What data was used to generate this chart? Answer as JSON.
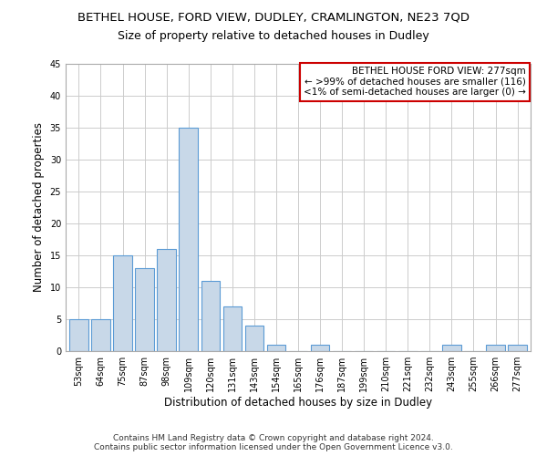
{
  "title": "BETHEL HOUSE, FORD VIEW, DUDLEY, CRAMLINGTON, NE23 7QD",
  "subtitle": "Size of property relative to detached houses in Dudley",
  "xlabel": "Distribution of detached houses by size in Dudley",
  "ylabel": "Number of detached properties",
  "categories": [
    "53sqm",
    "64sqm",
    "75sqm",
    "87sqm",
    "98sqm",
    "109sqm",
    "120sqm",
    "131sqm",
    "143sqm",
    "154sqm",
    "165sqm",
    "176sqm",
    "187sqm",
    "199sqm",
    "210sqm",
    "221sqm",
    "232sqm",
    "243sqm",
    "255sqm",
    "266sqm",
    "277sqm"
  ],
  "values": [
    5,
    5,
    15,
    13,
    16,
    35,
    11,
    7,
    4,
    1,
    0,
    1,
    0,
    0,
    0,
    0,
    0,
    1,
    0,
    1,
    1
  ],
  "bar_color": "#c8d8e8",
  "bar_edge_color": "#5b9bd5",
  "annotation_title": "BETHEL HOUSE FORD VIEW: 277sqm",
  "annotation_line1": "← >99% of detached houses are smaller (116)",
  "annotation_line2": "<1% of semi-detached houses are larger (0) →",
  "annotation_box_color": "#ffffff",
  "annotation_box_edge": "#cc0000",
  "footer_line1": "Contains HM Land Registry data © Crown copyright and database right 2024.",
  "footer_line2": "Contains public sector information licensed under the Open Government Licence v3.0.",
  "ylim": [
    0,
    45
  ],
  "yticks": [
    0,
    5,
    10,
    15,
    20,
    25,
    30,
    35,
    40,
    45
  ],
  "grid_color": "#cccccc",
  "background_color": "#ffffff",
  "title_fontsize": 9.5,
  "subtitle_fontsize": 9,
  "tick_fontsize": 7,
  "ylabel_fontsize": 8.5,
  "xlabel_fontsize": 8.5,
  "annotation_fontsize": 7.5,
  "footer_fontsize": 6.5
}
